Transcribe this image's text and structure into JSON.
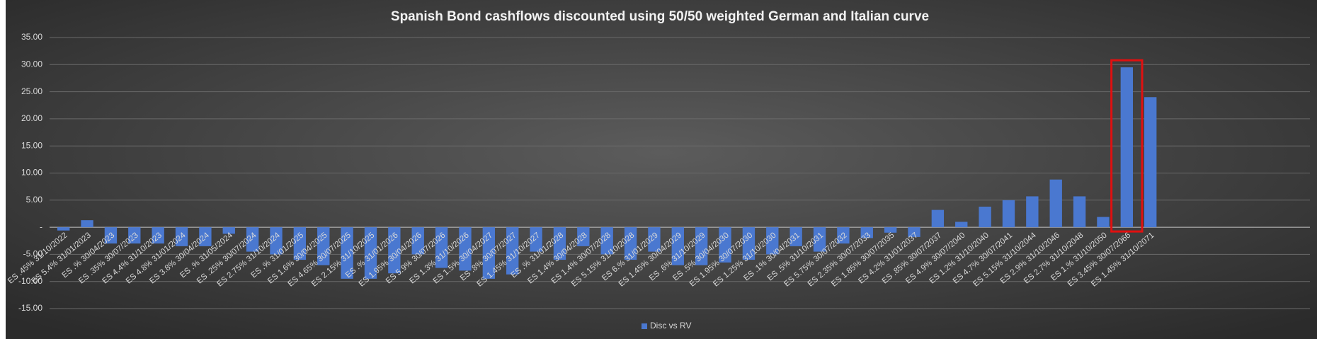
{
  "chart_data": {
    "type": "bar",
    "title": "Spanish Bond cashflows discounted using 50/50 weighted German and Italian curve",
    "categories": [
      "ES .45% 31/10/2022",
      "ES 5.4% 31/01/2023",
      "ES .% 30/04/2023",
      "ES .35% 30/07/2023",
      "ES 4.4% 31/10/2023",
      "ES 4.8% 31/01/2024",
      "ES 3.8% 30/04/2024",
      "ES .% 31/05/2024",
      "ES .25% 30/07/2024",
      "ES 2.75% 31/10/2024",
      "ES .% 31/01/2025",
      "ES 1.6% 30/04/2025",
      "ES 4.65% 30/07/2025",
      "ES 2.15% 31/10/2025",
      "ES .% 31/01/2026",
      "ES 1.95% 30/04/2026",
      "ES 5.9% 30/07/2026",
      "ES 1.3% 31/10/2026",
      "ES 1.5% 30/04/2027",
      "ES .8% 30/07/2027",
      "ES 1.45% 31/10/2027",
      "ES .% 31/01/2028",
      "ES 1.4% 30/04/2028",
      "ES 1.4% 30/07/2028",
      "ES 5.15% 31/10/2028",
      "ES 6.% 31/01/2029",
      "ES 1.45% 30/04/2029",
      "ES .6% 31/10/2029",
      "ES .5% 30/04/2030",
      "ES 1.95% 30/07/2030",
      "ES 1.25% 31/10/2030",
      "ES .1% 30/04/2031",
      "ES .5% 31/10/2031",
      "ES 5.75% 30/07/2032",
      "ES 2.35% 30/07/2033",
      "ES 1.85% 30/07/2035",
      "ES 4.2% 31/01/2037",
      "ES .85% 30/07/2037",
      "ES 4.9% 30/07/2040",
      "ES 1.2% 31/10/2040",
      "ES 4.7% 30/07/2041",
      "ES 5.15% 31/10/2044",
      "ES 2.9% 31/10/2046",
      "ES 2.7% 31/10/2048",
      "ES 1.% 31/10/2050",
      "ES 3.45% 30/07/2066",
      "ES 1.45% 31/10/2071"
    ],
    "series": [
      {
        "name": "Disc vs RV",
        "color": "#4a78d0",
        "values": [
          -0.6,
          1.3,
          -3.0,
          -3.0,
          -3.0,
          -3.5,
          -3.5,
          -1.2,
          -4.5,
          -5.0,
          -6.0,
          -7.0,
          -9.5,
          -9.5,
          -8.5,
          -5.0,
          -7.5,
          -8.0,
          -9.5,
          -8.7,
          -4.5,
          -6.0,
          -3.5,
          -5.0,
          -6.0,
          -4.5,
          -7.0,
          -7.0,
          -6.5,
          -6.0,
          -5.0,
          -3.5,
          -4.5,
          -3.0,
          -2.0,
          -1.0,
          -1.8,
          3.2,
          1.0,
          3.8,
          5.0,
          5.7,
          8.8,
          5.7,
          1.9,
          29.5,
          24.0
        ]
      }
    ],
    "ylim": [
      -15,
      35
    ],
    "yticks": [
      {
        "value": 35,
        "label": "35.00"
      },
      {
        "value": 30,
        "label": "30.00"
      },
      {
        "value": 25,
        "label": "25.00"
      },
      {
        "value": 20,
        "label": "20.00"
      },
      {
        "value": 15,
        "label": "15.00"
      },
      {
        "value": 10,
        "label": "10.00"
      },
      {
        "value": 5,
        "label": "5.00"
      },
      {
        "value": 0,
        "label": "-"
      },
      {
        "value": -5,
        "label": "-5.00"
      },
      {
        "value": -10,
        "label": "-10.00"
      },
      {
        "value": -15,
        "label": "-15.00"
      }
    ],
    "grid": true,
    "legend": "bottom"
  }
}
